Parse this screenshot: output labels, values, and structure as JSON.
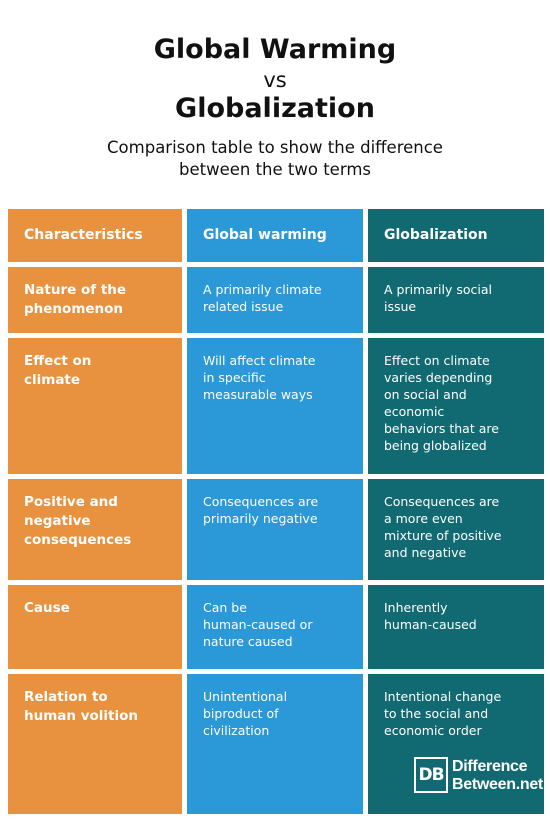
{
  "title_line1": "Global Warming",
  "vs": "vs",
  "title_line2": "Globalization",
  "subtitle_line1": "Comparison table to show the difference",
  "subtitle_line2": "between the two terms",
  "colors": {
    "orange": "#e8913f",
    "blue": "#2b98d8",
    "teal": "#116a72"
  },
  "table": {
    "headers": [
      "Characteristics",
      "Global warming",
      "Globalization"
    ],
    "rows": [
      {
        "label": [
          "Nature of the",
          "phenomenon"
        ],
        "a": [
          "A primarily climate",
          "related issue"
        ],
        "b": [
          "A primarily social",
          "issue"
        ]
      },
      {
        "label": [
          "Effect on",
          "climate"
        ],
        "a": [
          "Will affect climate",
          "in specific",
          "measurable ways"
        ],
        "b": [
          "Effect on climate",
          "varies depending",
          "on social and",
          "economic",
          "behaviors that are",
          "being globalized"
        ]
      },
      {
        "label": [
          "Positive and",
          "negative",
          "consequences"
        ],
        "a": [
          "Consequences are",
          "primarily negative"
        ],
        "b": [
          "Consequences are",
          "a more even",
          "mixture of positive",
          "and negative"
        ]
      },
      {
        "label": [
          "Cause"
        ],
        "a": [
          "Can be",
          "human-caused or",
          "nature caused"
        ],
        "b": [
          "Inherently",
          "human-caused"
        ]
      },
      {
        "label": [
          "Relation to",
          "human volition"
        ],
        "a": [
          "Unintentional",
          "biproduct of",
          "civilization"
        ],
        "b": [
          "Intentional change",
          "to the social and",
          "economic order"
        ]
      }
    ]
  },
  "logo": {
    "mark": "DB",
    "line1": "Difference",
    "line2": "Between.net"
  }
}
